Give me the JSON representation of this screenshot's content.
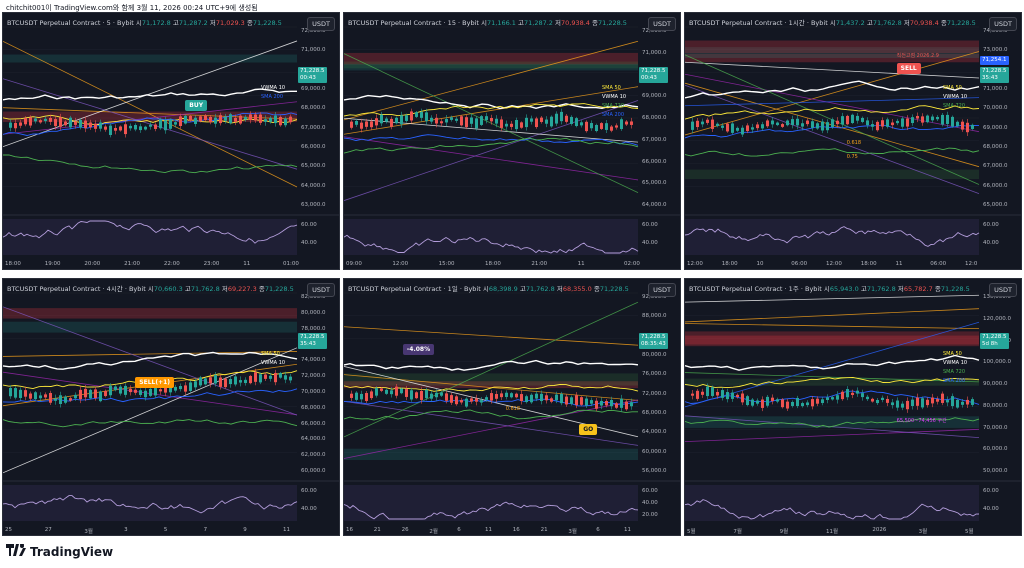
{
  "caption": "chitchit001이 TradingView.com와 함께 3월 11, 2026 00:24 UTC+9에 생성됨",
  "logo_text": "TradingView",
  "usdt_label": "USDT",
  "panels": [
    {
      "title_pre": "BTCUSDT Perpetual Contract · 5 · Bybit  시",
      "o": "71,172.8",
      "h_label": " 고",
      "h": "71,287.2",
      "l_label": " 저",
      "l": "71,029.3",
      "c_label": " 종",
      "c": "71,228.5",
      "prices": [
        "72,000.0",
        "71,000.0",
        "70,000.0",
        "69,000.0",
        "68,000.0",
        "67,000.0",
        "66,000.0",
        "65,000.0",
        "64,000.0",
        "63,000.0",
        "60.00",
        "40.00"
      ],
      "times": [
        "18:00",
        "19:00",
        "20:00",
        "21:00",
        "22:00",
        "23:00",
        "11",
        "01:00"
      ],
      "price_tag": "71,228.5",
      "price_tag_sub": "00:43",
      "ma_labels": [
        "VWMA 10",
        "SMA 200"
      ],
      "markers": [
        "BUY"
      ]
    },
    {
      "title_pre": "BTCUSDT Perpetual Contract · 15 · Bybit  시",
      "o": "71,166.1",
      "h_label": " 고",
      "h": "71,287.2",
      "l_label": " 저",
      "l": "70,938.4",
      "c_label": " 종",
      "c": "71,228.5",
      "prices": [
        "72,000.0",
        "71,000.0",
        "70,000.0",
        "69,000.0",
        "68,000.0",
        "67,000.0",
        "66,000.0",
        "65,000.0",
        "64,000.0",
        "60.00",
        "40.00"
      ],
      "times": [
        "09:00",
        "12:00",
        "15:00",
        "18:00",
        "21:00",
        "11",
        "02:00"
      ],
      "price_tag": "71,228.5",
      "price_tag_sub": "00:43",
      "ma_labels": [
        "SMA 50",
        "VWMA 10",
        "SMA 720",
        "SMA 200"
      ],
      "markers": []
    },
    {
      "title_pre": "BTCUSDT Perpetual Contract · 1시간 · Bybit  시",
      "o": "71,437.2",
      "h_label": " 고",
      "h": "71,762.8",
      "l_label": " 저",
      "l": "70,938.4",
      "c_label": " 종",
      "c": "71,228.5",
      "prices": [
        "74,000.0",
        "73,000.0",
        "72,000.0",
        "71,000.0",
        "70,000.0",
        "69,000.0",
        "68,000.0",
        "67,000.0",
        "66,000.0",
        "65,000.0",
        "60.00",
        "40.00"
      ],
      "times": [
        "12:00",
        "18:00",
        "10",
        "06:00",
        "12:00",
        "18:00",
        "11",
        "06:00",
        "12:0"
      ],
      "price_tag": "71,228.5",
      "price_tag_sub": "35:43",
      "price_tag2": "71,254.1",
      "ma_labels": [
        "SMA 50",
        "VWMA 10",
        "SMA 720"
      ],
      "fib": [
        "0.618",
        "0.75"
      ],
      "annotation": "직전고점 2026.2.9",
      "markers": [
        "SELL"
      ]
    },
    {
      "title_pre": "BTCUSDT Perpetual Contract · 4시간 · Bybit  시",
      "o": "70,660.3",
      "h_label": " 고",
      "h": "71,762.8",
      "l_label": " 저",
      "l": "69,227.3",
      "c_label": " 종",
      "c": "71,228.5",
      "prices": [
        "82,000.0",
        "80,000.0",
        "78,000.0",
        "76,000.0",
        "74,000.0",
        "72,000.0",
        "70,000.0",
        "68,000.0",
        "66,000.0",
        "64,000.0",
        "62,000.0",
        "60,000.0",
        "60.00",
        "40.00"
      ],
      "times": [
        "25",
        "27",
        "3월",
        "3",
        "5",
        "7",
        "9",
        "11"
      ],
      "price_tag": "71,228.5",
      "price_tag_sub": "35:43",
      "ma_labels": [
        "SMA 50",
        "VWMA 10"
      ],
      "markers": [
        "SELL(+1)"
      ]
    },
    {
      "title_pre": "BTCUSDT Perpetual Contract · 1일 · Bybit  시",
      "o": "68,398.9",
      "h_label": " 고",
      "h": "71,762.8",
      "l_label": " 저",
      "l": "68,355.0",
      "c_label": " 종",
      "c": "71,228.5",
      "prices": [
        "92,000.0",
        "88,000.0",
        "84,000.0",
        "80,000.0",
        "76,000.0",
        "72,000.0",
        "68,000.0",
        "64,000.0",
        "60,000.0",
        "56,000.0",
        "60.00",
        "40.00",
        "20.00"
      ],
      "times": [
        "16",
        "21",
        "26",
        "2월",
        "6",
        "11",
        "16",
        "21",
        "3월",
        "6",
        "11"
      ],
      "price_tag": "71,228.5",
      "price_tag_sub": "08:35:43",
      "pct": "-4.08%",
      "fib": [
        "0.618"
      ],
      "markers": [
        "GO"
      ]
    },
    {
      "title_pre": "BTCUSDT Perpetual Contract · 1주 · Bybit  시",
      "o": "65,943.0",
      "h_label": " 고",
      "h": "71,762.8",
      "l_label": " 저",
      "l": "65,782.7",
      "c_label": " 종",
      "c": "71,228.5",
      "prices": [
        "130,000.0",
        "120,000.0",
        "110,000.0",
        "100,000.0",
        "90,000.0",
        "80,000.0",
        "70,000.0",
        "60,000.0",
        "50,000.0",
        "60.00",
        "40.00"
      ],
      "times": [
        "5월",
        "7월",
        "9월",
        "11월",
        "2026",
        "3월",
        "5월"
      ],
      "price_tag": "71,228.5",
      "price_tag_sub": "5d 8h",
      "ma_labels": [
        "SMA 50",
        "VWMA 10",
        "SMA 720",
        "SMA 200"
      ],
      "zone_label": "65,500~74,456 구간"
    }
  ]
}
